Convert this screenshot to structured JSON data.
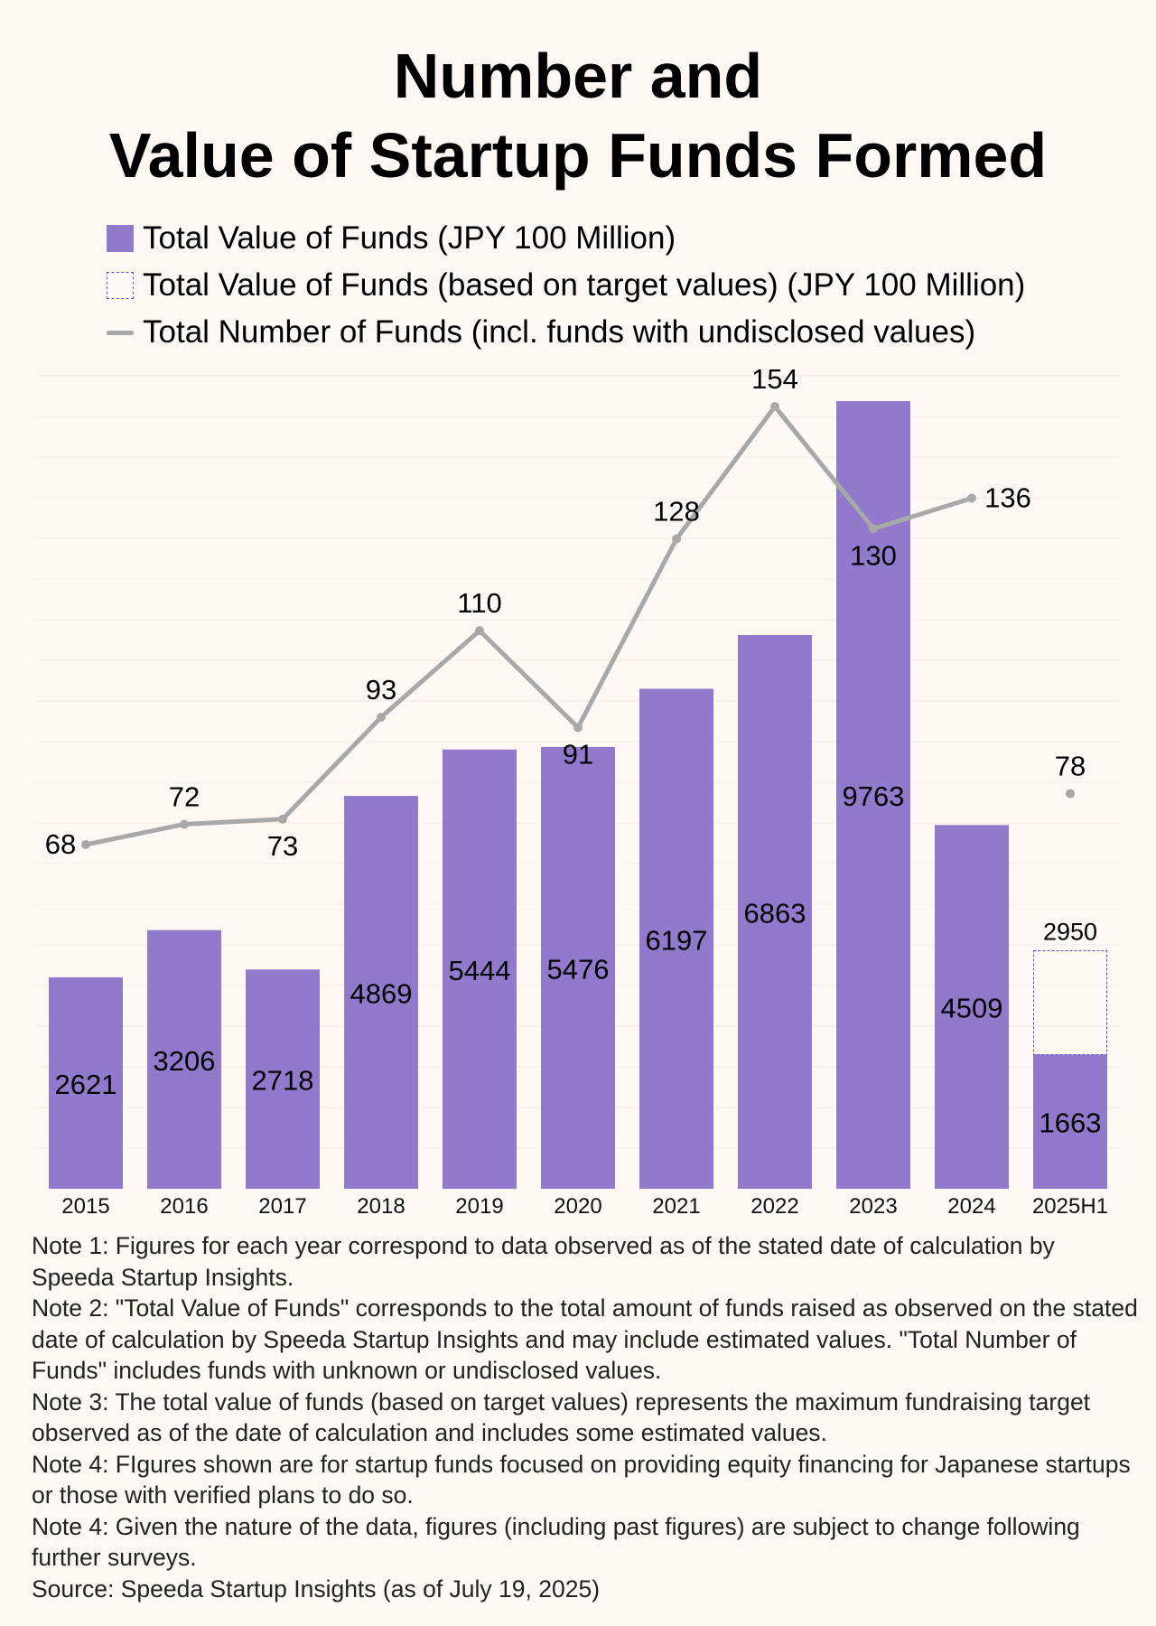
{
  "title_line1": "Number and",
  "title_line2": "Value of Startup Funds Formed",
  "legend": [
    {
      "label": "Total Value of Funds (JPY 100 Million)",
      "style": "solid"
    },
    {
      "label": "Total Value of Funds (based on target values) (JPY 100 Million)",
      "style": "dashed"
    },
    {
      "label": "Total Number of Funds (incl. funds with undisclosed values)",
      "style": "line"
    }
  ],
  "colors": {
    "bar": "#9179cc",
    "target_border": "#5a4ec0",
    "line": "#a8a8a8",
    "background": "#fdf8f4",
    "grid": "#f3ebe4"
  },
  "chart_data": {
    "type": "bar",
    "categories": [
      "2015",
      "2016",
      "2017",
      "2018",
      "2019",
      "2020",
      "2021",
      "2022",
      "2023",
      "2024",
      "2025H1"
    ],
    "series": [
      {
        "name": "Total Value of Funds (JPY 100 Million)",
        "type": "bar",
        "values": [
          2621,
          3206,
          2718,
          4869,
          5444,
          5476,
          6197,
          6863,
          9763,
          4509,
          1663
        ]
      },
      {
        "name": "Total Value of Funds (based on target values) (JPY 100 Million)",
        "type": "bar-outline",
        "values": [
          null,
          null,
          null,
          null,
          null,
          null,
          null,
          null,
          null,
          null,
          2950
        ]
      },
      {
        "name": "Total Number of Funds (incl. funds with undisclosed values)",
        "type": "line",
        "values": [
          68,
          72,
          73,
          93,
          110,
          91,
          128,
          154,
          130,
          136,
          78
        ],
        "connected": [
          true,
          true,
          true,
          true,
          true,
          true,
          true,
          true,
          true,
          true,
          false
        ]
      }
    ],
    "grid": true,
    "legend_position": "top-left"
  },
  "notes": [
    "Note 1: Figures for each year correspond to data observed as of the stated date of calculation by Speeda Startup Insights.",
    "Note 2: \"Total Value of Funds\" corresponds to the total amount of funds raised as observed on the stated date of calculation by Speeda Startup Insights and may include estimated values. \"Total Number of Funds\" includes funds with unknown or undisclosed values.",
    "Note 3: The total value of funds (based on target values) represents the maximum fundraising target observed as of the date of calculation and includes some estimated values.",
    "Note 4: FIgures shown are for startup funds focused on providing equity financing for Japanese startups or those with verified plans to do so.",
    "Note 4: Given the nature of the data, figures (including past figures) are subject to change following further surveys.",
    "Source: Speeda Startup Insights (as of July 19, 2025)"
  ]
}
